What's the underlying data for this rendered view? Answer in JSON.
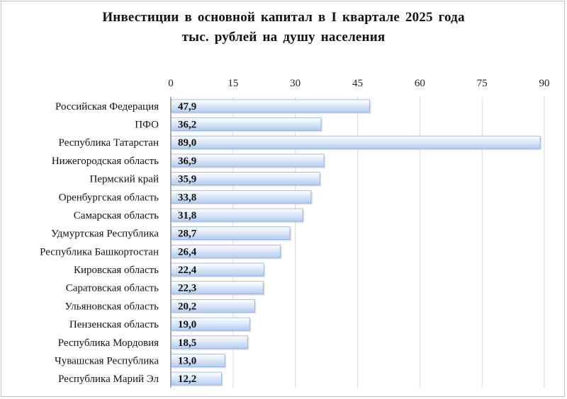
{
  "chart_data": {
    "type": "bar",
    "orientation": "horizontal",
    "title": "Инвестиции в основной капитал в I квартале 2025 года",
    "subtitle": "тыс. рублей на душу населения",
    "categories": [
      "Российская Федерация",
      "ПФО",
      "Республика Татарстан",
      "Нижегородская область",
      "Пермский край",
      "Оренбургская область",
      "Самарская область",
      "Удмуртская Республика",
      "Республика Башкортостан",
      "Кировская область",
      "Саратовская область",
      "Ульяновская область",
      "Пензенская область",
      "Республика Мордовия",
      "Чувашская Республика",
      "Республика Марий Эл"
    ],
    "values": [
      47.9,
      36.2,
      89.0,
      36.9,
      35.9,
      33.8,
      31.8,
      28.7,
      26.4,
      22.4,
      22.3,
      20.2,
      19.0,
      18.5,
      13.0,
      12.2
    ],
    "value_labels": [
      "47,9",
      "36,2",
      "89,0",
      "36,9",
      "35,9",
      "33,8",
      "31,8",
      "28,7",
      "26,4",
      "22,4",
      "22,3",
      "20,2",
      "19,0",
      "18,5",
      "13,0",
      "12,2"
    ],
    "xticks": [
      0,
      15,
      30,
      45,
      60,
      75,
      90
    ],
    "xlim": [
      0,
      90
    ],
    "axis_position": "top",
    "grid": true,
    "legend": "none",
    "colors": {
      "bar_light": "#eef4fd",
      "bar_dark": "#b3ccf0",
      "bar_edge": "#90acd8",
      "grid": "#d9d9d9",
      "axis": "#8c8c8c"
    }
  }
}
